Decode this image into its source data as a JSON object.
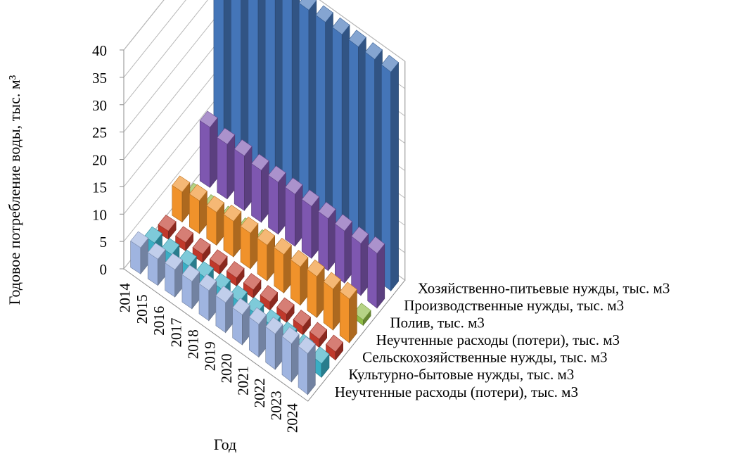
{
  "chart_data": {
    "type": "bar",
    "subtype": "3d-column",
    "title": "",
    "xlabel": "Год",
    "ylabel": "Годовое потребление воды, тыс. м³",
    "zlim": [
      0,
      40
    ],
    "z_ticks": [
      "0",
      "5",
      "10",
      "15",
      "20",
      "25",
      "30",
      "35",
      "40"
    ],
    "grid": true,
    "legend": "none (series names printed on depth axis)",
    "categories": [
      "2014",
      "2015",
      "2016",
      "2017",
      "2018",
      "2019",
      "2020",
      "2021",
      "2022",
      "2023",
      "2024"
    ],
    "series": [
      {
        "name": "Неучтенные расходы (потери), тыс. м3",
        "color": "#9fb4e0",
        "values": [
          4.8,
          4.8,
          5.0,
          5.0,
          5.5,
          5.5,
          5.5,
          6.0,
          6.5,
          7.0,
          7.5
        ]
      },
      {
        "name": "Культурно-бытовые  нужды, тыс. м3",
        "color": "#39aec4",
        "values": [
          2.5,
          2.5,
          2.5,
          2.5,
          2.5,
          2.5,
          2.5,
          2.5,
          2.5,
          2.5,
          2.5
        ]
      },
      {
        "name": "Сельскохозяйственные  нужды, тыс. м3",
        "color": "#c0392b",
        "values": [
          1.5,
          1.5,
          1.5,
          1.5,
          1.5,
          1.5,
          1.5,
          1.5,
          1.5,
          1.5,
          1.5
        ]
      },
      {
        "name": "Неучтенные расходы (потери), тыс. м3",
        "color": "#f0922b",
        "values": [
          5.5,
          6.0,
          6.0,
          6.5,
          6.5,
          6.5,
          7.0,
          7.0,
          7.5,
          7.5,
          8.0
        ]
      },
      {
        "name": "Полив, тыс. м3",
        "color": "#8fbc45",
        "values": [
          1.0,
          1.0,
          1.0,
          1.0,
          1.0,
          1.0,
          1.0,
          1.0,
          1.0,
          1.0,
          1.0
        ]
      },
      {
        "name": "Производственные нужды, тыс. м3",
        "color": "#7e57b0",
        "values": [
          11.0,
          10.0,
          10.0,
          9.5,
          9.5,
          9.5,
          9.5,
          9.5,
          9.5,
          9.5,
          10.0
        ]
      },
      {
        "name": "Хозяйственно-питьевые нужды, тыс. м3",
        "color": "#4475b8",
        "values": [
          40.0,
          40.0,
          40.0,
          40.0,
          40.0,
          40.0,
          40.0,
          40.0,
          40.0,
          40.0,
          40.0
        ]
      }
    ]
  }
}
